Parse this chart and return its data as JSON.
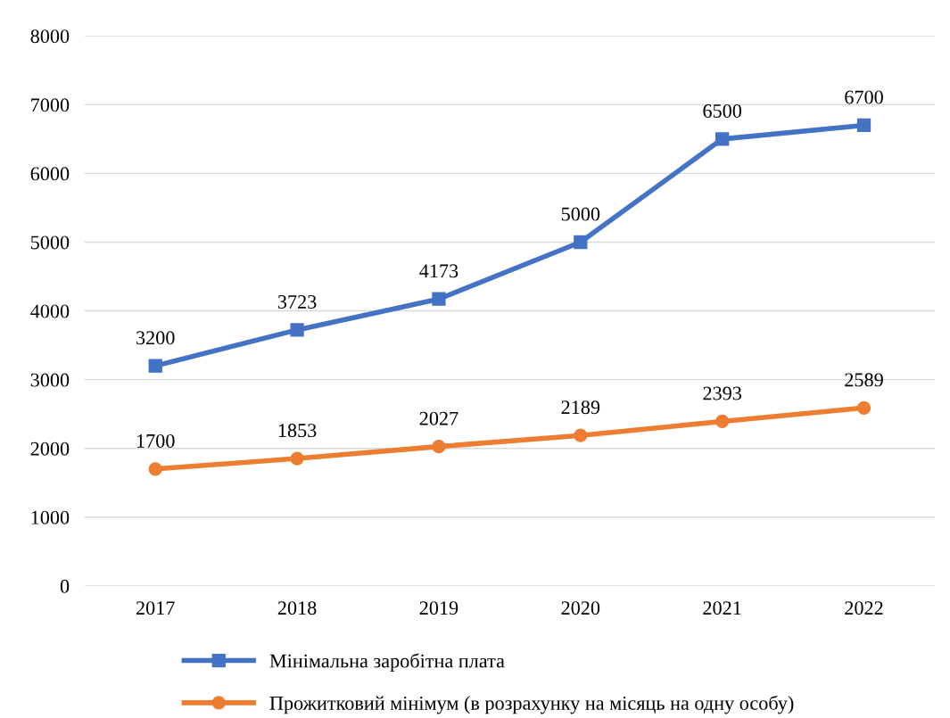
{
  "chart_data": {
    "type": "line",
    "categories": [
      "2017",
      "2018",
      "2019",
      "2020",
      "2021",
      "2022"
    ],
    "series": [
      {
        "name": "Мінімальна заробітна плата",
        "color": "#4472c4",
        "marker": "square",
        "values": [
          3200,
          3723,
          4173,
          5000,
          6500,
          6700
        ]
      },
      {
        "name": "Прожитковий мінімум (в розрахунку на місяць на одну особу)",
        "color": "#ed7d31",
        "marker": "circle",
        "values": [
          1700,
          1853,
          2027,
          2189,
          2393,
          2589
        ]
      }
    ],
    "ylim": [
      0,
      8000
    ],
    "yticks": [
      0,
      1000,
      2000,
      3000,
      4000,
      5000,
      6000,
      7000,
      8000
    ],
    "grid": "y",
    "legend": "bottom",
    "data_labels": true,
    "line_style": "solid"
  }
}
